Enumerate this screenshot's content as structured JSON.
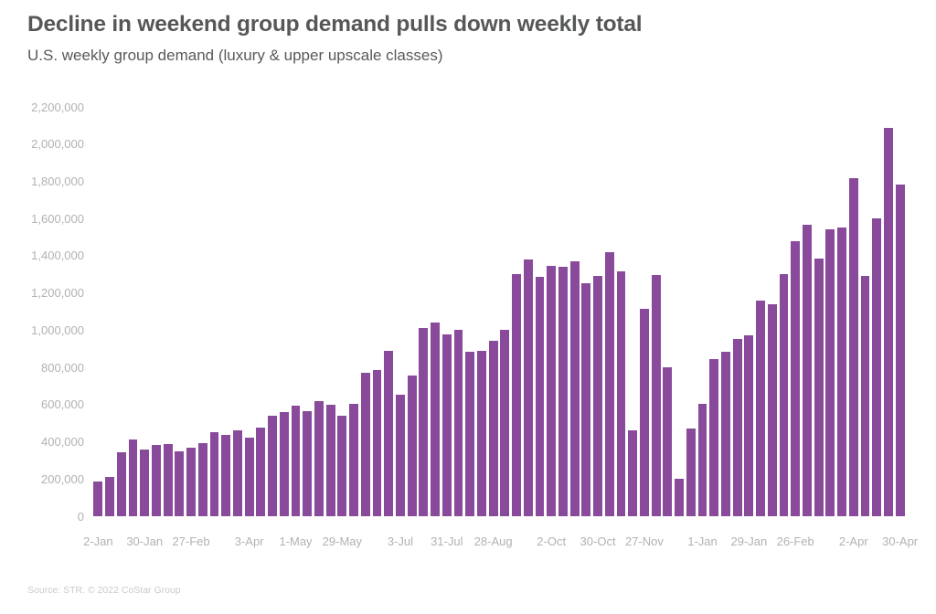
{
  "header": {
    "title": "Decline in weekend group demand pulls down weekly total",
    "subtitle": "U.S. weekly group demand (luxury & upper upscale classes)"
  },
  "footer": {
    "source": "Source: STR. © 2022 CoStar Group"
  },
  "colors": {
    "bar": "#8a4a9b",
    "title_text": "#565759",
    "subtitle_text": "#58595b",
    "axis_label": "#b1b2b4",
    "source_text": "#c9cacc",
    "background": "#ffffff"
  },
  "chart_data": {
    "type": "bar",
    "title": "Decline in weekend group demand pulls down weekly total",
    "subtitle": "U.S. weekly group demand (luxury & upper upscale classes)",
    "ylabel": "",
    "xlabel": "",
    "ylim": [
      0,
      2200000
    ],
    "y_tick_step": 200000,
    "grid": false,
    "legend": false,
    "n_bars": 70,
    "values": [
      185000,
      210000,
      345000,
      415000,
      360000,
      385000,
      390000,
      350000,
      370000,
      395000,
      450000,
      435000,
      460000,
      420000,
      475000,
      540000,
      560000,
      595000,
      565000,
      620000,
      600000,
      540000,
      605000,
      770000,
      785000,
      890000,
      655000,
      755000,
      1010000,
      1040000,
      975000,
      1000000,
      885000,
      890000,
      945000,
      1000000,
      1300000,
      1380000,
      1285000,
      1345000,
      1340000,
      1370000,
      1250000,
      1290000,
      1420000,
      1315000,
      460000,
      1115000,
      1295000,
      800000,
      200000,
      470000,
      605000,
      845000,
      885000,
      955000,
      970000,
      1160000,
      1140000,
      1300000,
      1480000,
      1565000,
      1385000,
      1540000,
      1550000,
      1815000,
      1290000,
      1600000,
      2085000,
      1785000
    ],
    "x_tick_indices": [
      0,
      4,
      8,
      13,
      17,
      21,
      26,
      30,
      34,
      39,
      43,
      47,
      52,
      56,
      60,
      65,
      69
    ],
    "x_tick_labels": [
      "2-Jan",
      "30-Jan",
      "27-Feb",
      "3-Apr",
      "1-May",
      "29-May",
      "3-Jul",
      "31-Jul",
      "28-Aug",
      "2-Oct",
      "30-Oct",
      "27-Nov",
      "1-Jan",
      "29-Jan",
      "26-Feb",
      "2-Apr",
      "30-Apr"
    ]
  }
}
